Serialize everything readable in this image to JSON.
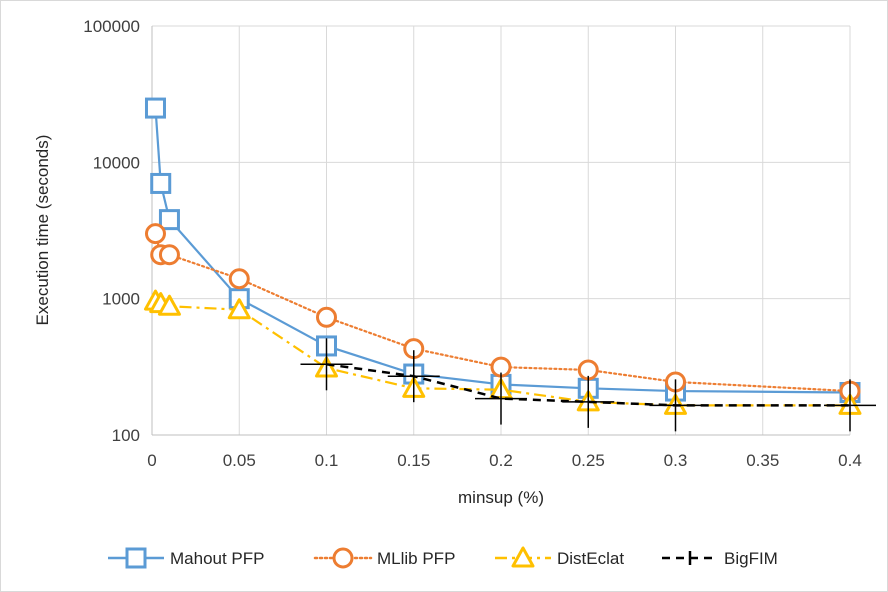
{
  "chart_data": {
    "type": "line",
    "title": "",
    "xlabel": "minsup (%)",
    "ylabel": "Execution time (seconds)",
    "xlim": [
      0,
      0.4
    ],
    "ylim": [
      100,
      100000
    ],
    "yscale": "log",
    "grid": true,
    "legend_position": "bottom",
    "x_ticks": [
      "0",
      "0.05",
      "0.1",
      "0.15",
      "0.2",
      "0.25",
      "0.3",
      "0.35",
      "0.4"
    ],
    "x_tick_values": [
      0,
      0.05,
      0.1,
      0.15,
      0.2,
      0.25,
      0.3,
      0.35,
      0.4
    ],
    "y_ticks": [
      "100",
      "1000",
      "10000",
      "100000"
    ],
    "y_tick_values": [
      100,
      1000,
      10000,
      100000
    ],
    "series": [
      {
        "name": "Mahout PFP",
        "color": "#5b9bd5",
        "marker": "square",
        "dash": "solid",
        "x": [
          0.002,
          0.005,
          0.01,
          0.05,
          0.1,
          0.15,
          0.2,
          0.25,
          0.3,
          0.4
        ],
        "y": [
          25000,
          7000,
          3800,
          1000,
          450,
          280,
          235,
          220,
          210,
          205
        ]
      },
      {
        "name": "MLlib PFP",
        "color": "#ed7d31",
        "marker": "circle",
        "dash": "dotted",
        "x": [
          0.002,
          0.005,
          0.01,
          0.05,
          0.1,
          0.15,
          0.2,
          0.25,
          0.3,
          0.4
        ],
        "y": [
          3000,
          2100,
          2100,
          1400,
          730,
          430,
          315,
          300,
          245,
          210
        ]
      },
      {
        "name": "DistEclat",
        "color": "#ffc000",
        "marker": "triangle",
        "dash": "dashdot",
        "x": [
          0.002,
          0.005,
          0.01,
          0.05,
          0.1,
          0.15,
          0.2,
          0.25,
          0.3,
          0.4
        ],
        "y": [
          960,
          920,
          880,
          830,
          310,
          220,
          215,
          175,
          165,
          165
        ]
      },
      {
        "name": "BigFIM",
        "color": "#000000",
        "marker": "plus",
        "dash": "dashed",
        "x": [
          0.1,
          0.15,
          0.2,
          0.25,
          0.3,
          0.4
        ],
        "y": [
          330,
          270,
          185,
          175,
          165,
          165
        ]
      }
    ]
  }
}
